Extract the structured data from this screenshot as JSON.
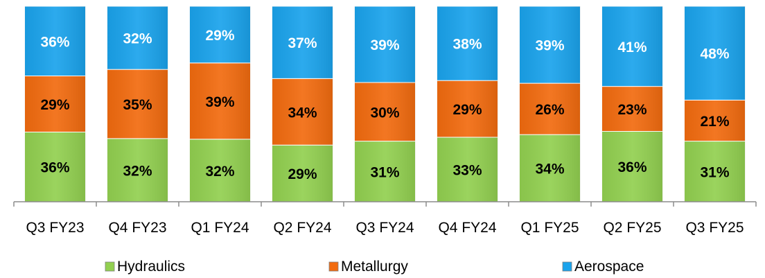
{
  "chart_data": {
    "type": "bar",
    "stacked": true,
    "percent": true,
    "categories": [
      "Q3 FY23",
      "Q4 FY23",
      "Q1 FY24",
      "Q2 FY24",
      "Q3 FY24",
      "Q4 FY24",
      "Q1 FY25",
      "Q2 FY25",
      "Q3 FY25"
    ],
    "series": [
      {
        "name": "Hydraulics",
        "color": "#92d050",
        "label_color": "#000000",
        "values": [
          36,
          32,
          32,
          29,
          31,
          33,
          34,
          36,
          31
        ]
      },
      {
        "name": "Metallurgy",
        "color": "#f26b0f",
        "label_color": "#000000",
        "values": [
          29,
          35,
          39,
          34,
          30,
          29,
          26,
          23,
          21
        ]
      },
      {
        "name": "Aerospace",
        "color": "#1aa3ec",
        "label_color": "#ffffff",
        "values": [
          36,
          32,
          29,
          37,
          39,
          38,
          39,
          41,
          48
        ]
      }
    ],
    "value_suffix": "%",
    "ylim": [
      0,
      100
    ],
    "grid": false,
    "legend_position": "bottom",
    "title": "",
    "xlabel": "",
    "ylabel": ""
  }
}
